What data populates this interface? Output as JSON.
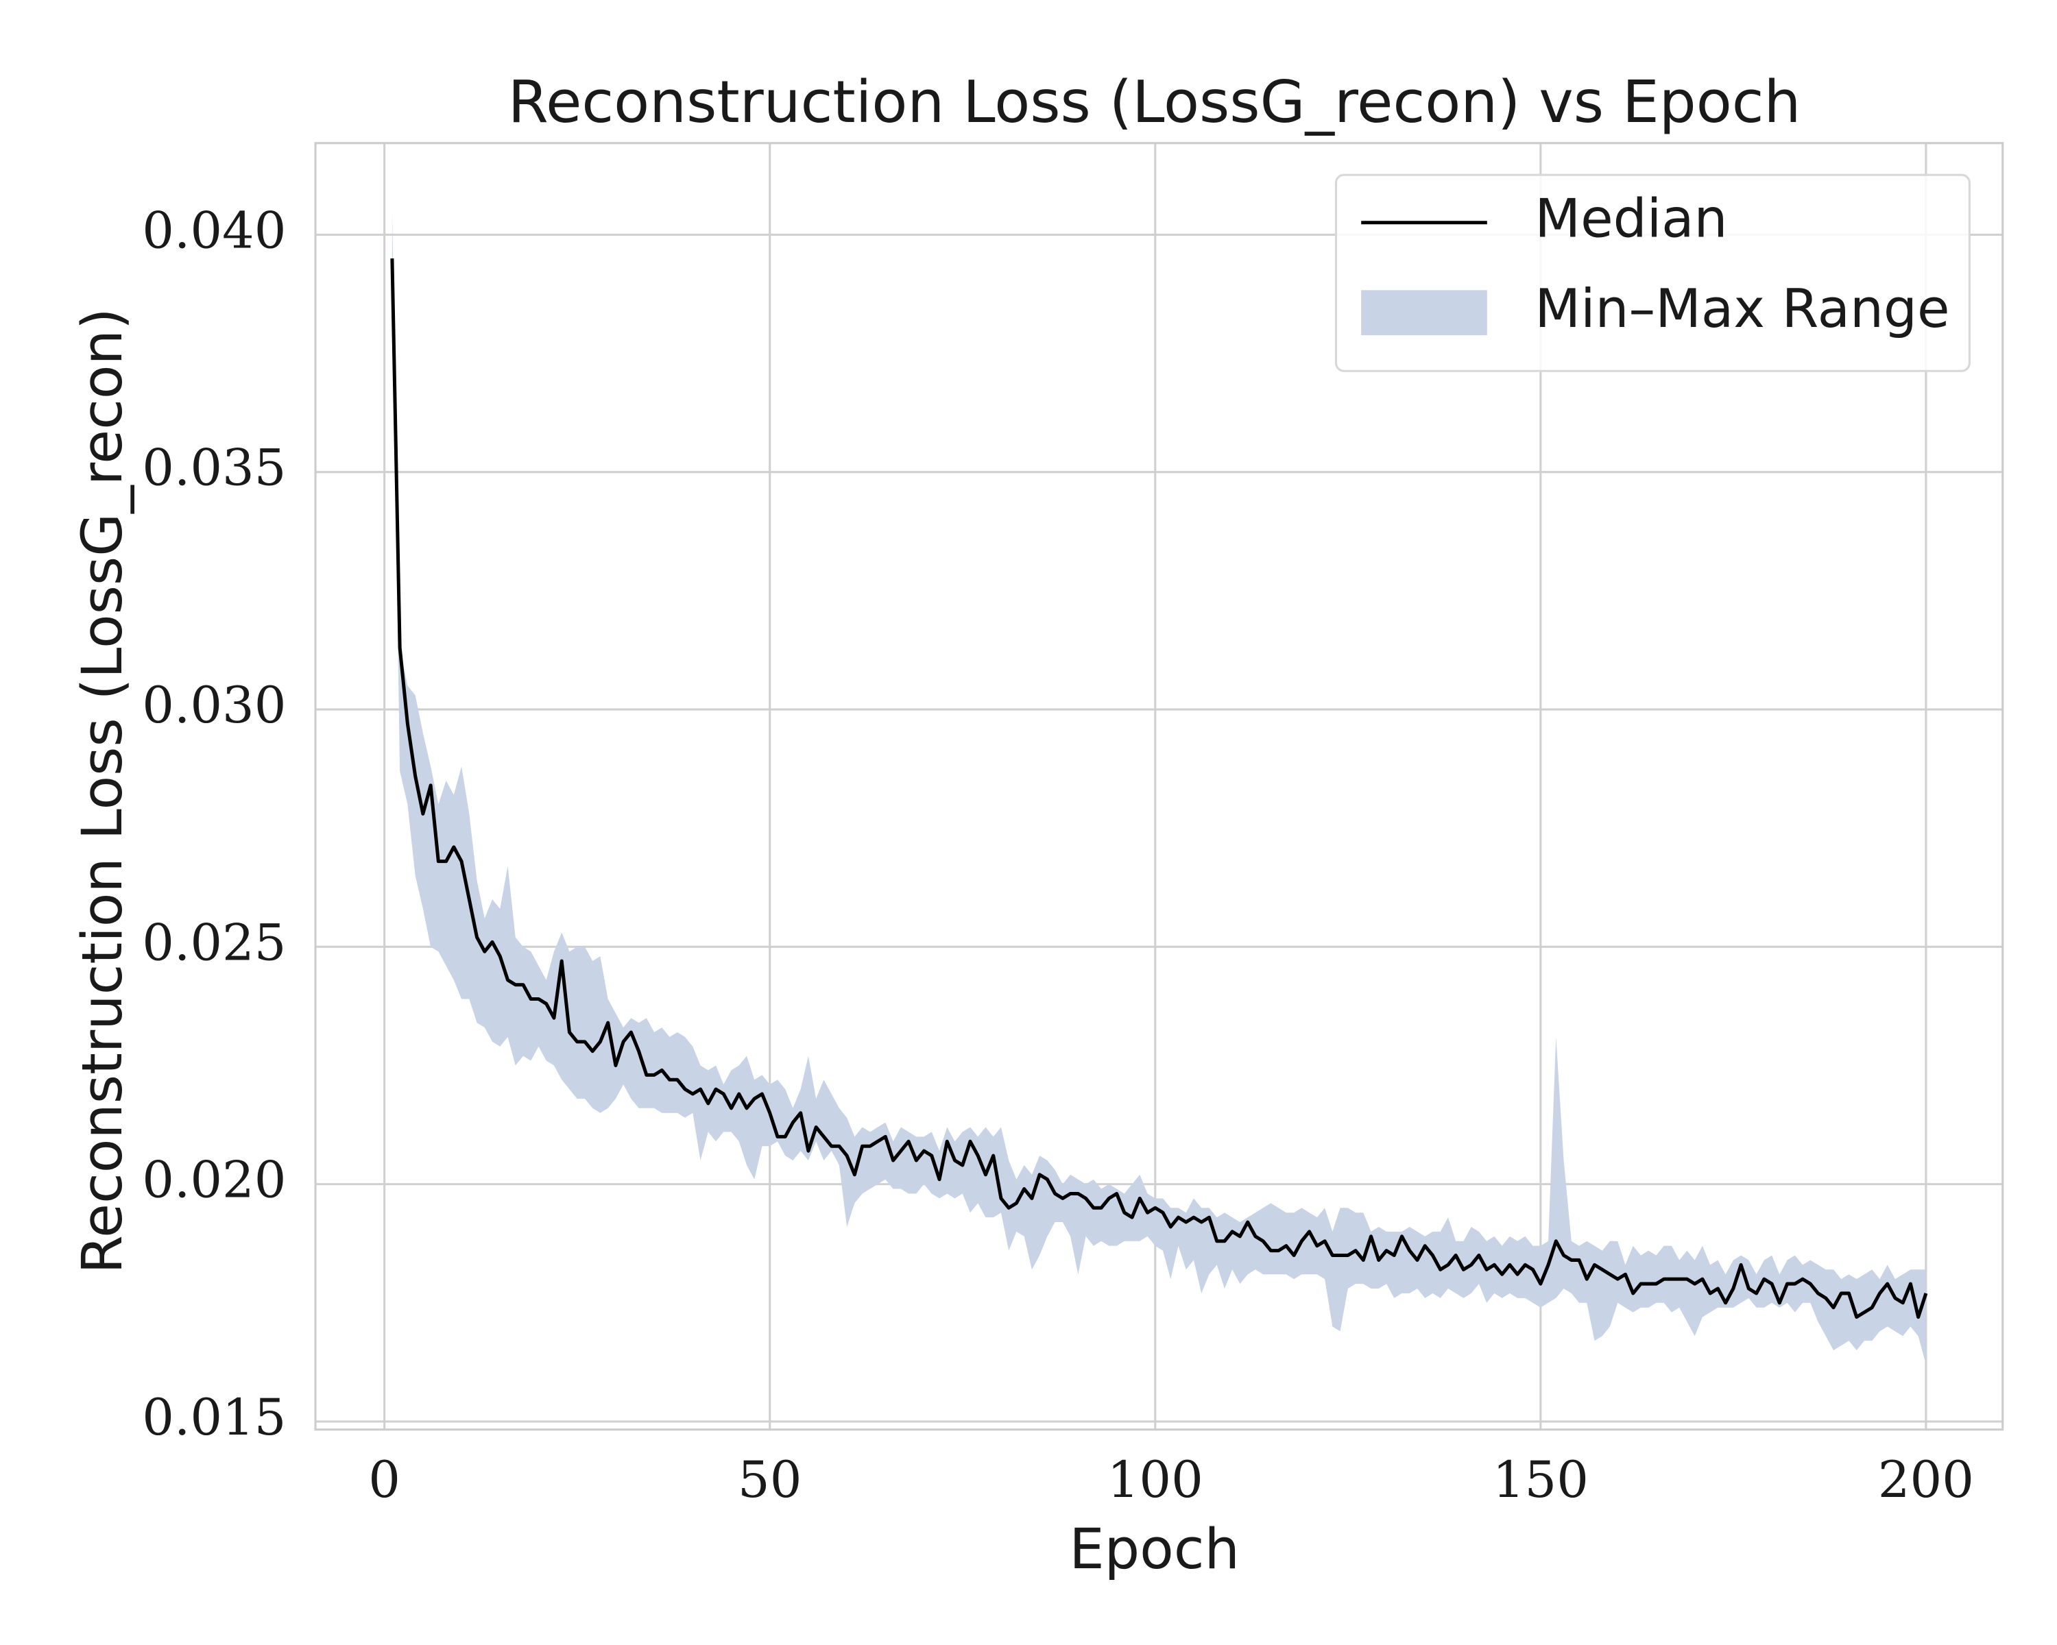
{
  "chart_data": {
    "type": "line",
    "title": "Reconstruction Loss (LossG_recon) vs Epoch",
    "x_label": "Epoch",
    "y_label": "Reconstruction Loss (LossG_recon)",
    "x": [
      1,
      2,
      3,
      4,
      5,
      6,
      7,
      8,
      9,
      10,
      11,
      12,
      13,
      14,
      15,
      16,
      17,
      18,
      19,
      20,
      21,
      22,
      23,
      24,
      25,
      26,
      27,
      28,
      29,
      30,
      31,
      32,
      33,
      34,
      35,
      36,
      37,
      38,
      39,
      40,
      41,
      42,
      43,
      44,
      45,
      46,
      47,
      48,
      49,
      50,
      51,
      52,
      53,
      54,
      55,
      56,
      57,
      58,
      59,
      60,
      61,
      62,
      63,
      64,
      65,
      66,
      67,
      68,
      69,
      70,
      71,
      72,
      73,
      74,
      75,
      76,
      77,
      78,
      79,
      80,
      81,
      82,
      83,
      84,
      85,
      86,
      87,
      88,
      89,
      90,
      91,
      92,
      93,
      94,
      95,
      96,
      97,
      98,
      99,
      100,
      101,
      102,
      103,
      104,
      105,
      106,
      107,
      108,
      109,
      110,
      111,
      112,
      113,
      114,
      115,
      116,
      117,
      118,
      119,
      120,
      121,
      122,
      123,
      124,
      125,
      126,
      127,
      128,
      129,
      130,
      131,
      132,
      133,
      134,
      135,
      136,
      137,
      138,
      139,
      140,
      141,
      142,
      143,
      144,
      145,
      146,
      147,
      148,
      149,
      150,
      151,
      152,
      153,
      154,
      155,
      156,
      157,
      158,
      159,
      160,
      161,
      162,
      163,
      164,
      165,
      166,
      167,
      168,
      169,
      170,
      171,
      172,
      173,
      174,
      175,
      176,
      177,
      178,
      179,
      180,
      181,
      182,
      183,
      184,
      185,
      186,
      187,
      188,
      189,
      190,
      191,
      192,
      193,
      194,
      195,
      196,
      197,
      198,
      199,
      200
    ],
    "series": [
      {
        "name": "Median",
        "color": "#000000",
        "values": [
          0.0395,
          0.0313,
          0.0297,
          0.0286,
          0.0278,
          0.0284,
          0.0268,
          0.0268,
          0.0271,
          0.0268,
          0.026,
          0.0252,
          0.0249,
          0.0251,
          0.0248,
          0.0243,
          0.0242,
          0.0242,
          0.0239,
          0.0239,
          0.0238,
          0.0235,
          0.0247,
          0.0232,
          0.023,
          0.023,
          0.0228,
          0.023,
          0.0234,
          0.0225,
          0.023,
          0.0232,
          0.0228,
          0.0223,
          0.0223,
          0.0224,
          0.0222,
          0.0222,
          0.022,
          0.0219,
          0.022,
          0.0217,
          0.022,
          0.0219,
          0.0216,
          0.0219,
          0.0216,
          0.0218,
          0.0219,
          0.0215,
          0.021,
          0.021,
          0.0213,
          0.0215,
          0.0207,
          0.0212,
          0.021,
          0.0208,
          0.0208,
          0.0206,
          0.0202,
          0.0208,
          0.0208,
          0.0209,
          0.021,
          0.0205,
          0.0207,
          0.0209,
          0.0205,
          0.0207,
          0.0206,
          0.0201,
          0.0209,
          0.0205,
          0.0204,
          0.0209,
          0.0206,
          0.0202,
          0.0206,
          0.0197,
          0.0195,
          0.0196,
          0.0199,
          0.0197,
          0.0202,
          0.0201,
          0.0198,
          0.0197,
          0.0198,
          0.0198,
          0.0197,
          0.0195,
          0.0195,
          0.0197,
          0.0198,
          0.0194,
          0.0193,
          0.0197,
          0.0194,
          0.0195,
          0.0194,
          0.0191,
          0.0193,
          0.0192,
          0.0193,
          0.0192,
          0.0193,
          0.0188,
          0.0188,
          0.019,
          0.0189,
          0.0192,
          0.0189,
          0.0188,
          0.0186,
          0.0186,
          0.0187,
          0.0185,
          0.0188,
          0.019,
          0.0187,
          0.0188,
          0.0185,
          0.0185,
          0.0185,
          0.0186,
          0.0184,
          0.0189,
          0.0184,
          0.0186,
          0.0185,
          0.0189,
          0.0186,
          0.0184,
          0.0187,
          0.0185,
          0.0182,
          0.0183,
          0.0185,
          0.0182,
          0.0183,
          0.0185,
          0.0182,
          0.0183,
          0.0181,
          0.0183,
          0.0181,
          0.0183,
          0.0182,
          0.0179,
          0.0183,
          0.0188,
          0.0185,
          0.0184,
          0.0184,
          0.018,
          0.0183,
          0.0182,
          0.0181,
          0.018,
          0.0181,
          0.0177,
          0.0179,
          0.0179,
          0.0179,
          0.018,
          0.018,
          0.018,
          0.018,
          0.0179,
          0.018,
          0.0177,
          0.0178,
          0.0175,
          0.0178,
          0.0183,
          0.0178,
          0.0177,
          0.018,
          0.0179,
          0.0175,
          0.0179,
          0.0179,
          0.018,
          0.0179,
          0.0177,
          0.0176,
          0.0174,
          0.0177,
          0.0177,
          0.0172,
          0.0173,
          0.0174,
          0.0177,
          0.0179,
          0.0176,
          0.0175,
          0.0179,
          0.0172,
          0.0177
        ]
      }
    ],
    "band": {
      "name": "Min–Max Range",
      "color": "#c8d3e6",
      "lower": [
        0.0393,
        0.0287,
        0.028,
        0.0265,
        0.0258,
        0.025,
        0.0249,
        0.0246,
        0.0243,
        0.0239,
        0.0239,
        0.0234,
        0.0233,
        0.023,
        0.0229,
        0.0231,
        0.0225,
        0.0227,
        0.0226,
        0.0229,
        0.0226,
        0.0225,
        0.0222,
        0.022,
        0.0218,
        0.0218,
        0.0216,
        0.0215,
        0.0216,
        0.0218,
        0.0221,
        0.0218,
        0.0216,
        0.0216,
        0.0216,
        0.0215,
        0.0215,
        0.0215,
        0.0214,
        0.0215,
        0.0205,
        0.0211,
        0.0209,
        0.0211,
        0.0211,
        0.0209,
        0.0204,
        0.0201,
        0.0208,
        0.0208,
        0.0209,
        0.0206,
        0.0205,
        0.0207,
        0.0205,
        0.0209,
        0.0205,
        0.0207,
        0.0204,
        0.0191,
        0.0196,
        0.0198,
        0.0199,
        0.02,
        0.0201,
        0.0199,
        0.0199,
        0.0198,
        0.0198,
        0.02,
        0.0198,
        0.0197,
        0.0198,
        0.0197,
        0.0198,
        0.0194,
        0.0196,
        0.0193,
        0.0193,
        0.0194,
        0.0186,
        0.019,
        0.0189,
        0.0182,
        0.0185,
        0.0189,
        0.0192,
        0.0192,
        0.0189,
        0.0181,
        0.0189,
        0.0187,
        0.0188,
        0.0187,
        0.0187,
        0.0188,
        0.0188,
        0.0188,
        0.0189,
        0.0187,
        0.0186,
        0.018,
        0.0187,
        0.0182,
        0.0184,
        0.0177,
        0.0181,
        0.0183,
        0.0178,
        0.0182,
        0.0179,
        0.0181,
        0.0182,
        0.0181,
        0.0181,
        0.0181,
        0.0181,
        0.018,
        0.0181,
        0.0181,
        0.0181,
        0.018,
        0.017,
        0.0169,
        0.0178,
        0.0179,
        0.0179,
        0.0178,
        0.0178,
        0.0179,
        0.0176,
        0.0177,
        0.0177,
        0.0178,
        0.0176,
        0.0177,
        0.0176,
        0.0178,
        0.0177,
        0.0176,
        0.0177,
        0.0179,
        0.0175,
        0.0177,
        0.0176,
        0.0177,
        0.0176,
        0.0176,
        0.0175,
        0.0174,
        0.0175,
        0.0176,
        0.0178,
        0.0177,
        0.0175,
        0.0175,
        0.0167,
        0.0168,
        0.017,
        0.0175,
        0.0174,
        0.0173,
        0.0174,
        0.0174,
        0.0175,
        0.0175,
        0.0173,
        0.0174,
        0.0171,
        0.0168,
        0.0172,
        0.0173,
        0.0174,
        0.0174,
        0.0174,
        0.0175,
        0.0176,
        0.0174,
        0.0174,
        0.0175,
        0.0174,
        0.0175,
        0.0173,
        0.0175,
        0.0175,
        0.0171,
        0.0168,
        0.0165,
        0.0166,
        0.0167,
        0.0165,
        0.0167,
        0.0167,
        0.0169,
        0.017,
        0.0169,
        0.0168,
        0.017,
        0.0168,
        0.0162
      ],
      "upper": [
        0.0405,
        0.0313,
        0.0305,
        0.0303,
        0.0295,
        0.0288,
        0.028,
        0.0285,
        0.0282,
        0.0288,
        0.0278,
        0.0264,
        0.0256,
        0.026,
        0.0258,
        0.0267,
        0.0252,
        0.025,
        0.0249,
        0.0246,
        0.0243,
        0.0249,
        0.0253,
        0.0249,
        0.025,
        0.025,
        0.0247,
        0.0248,
        0.0239,
        0.0236,
        0.0233,
        0.0235,
        0.0234,
        0.0235,
        0.0232,
        0.0233,
        0.0231,
        0.0232,
        0.0231,
        0.0229,
        0.0225,
        0.0224,
        0.0225,
        0.0221,
        0.0224,
        0.0225,
        0.0227,
        0.0222,
        0.0223,
        0.0221,
        0.0222,
        0.022,
        0.0216,
        0.022,
        0.0227,
        0.0218,
        0.0222,
        0.0219,
        0.0216,
        0.0214,
        0.021,
        0.0212,
        0.0211,
        0.0212,
        0.0213,
        0.0209,
        0.0212,
        0.0211,
        0.021,
        0.021,
        0.0211,
        0.0207,
        0.0212,
        0.0209,
        0.0211,
        0.0212,
        0.021,
        0.0212,
        0.021,
        0.0212,
        0.0205,
        0.0201,
        0.0204,
        0.0202,
        0.0206,
        0.0205,
        0.0203,
        0.02,
        0.0202,
        0.0201,
        0.02,
        0.0201,
        0.0199,
        0.02,
        0.0199,
        0.0198,
        0.02,
        0.0202,
        0.0198,
        0.0197,
        0.0197,
        0.0195,
        0.0195,
        0.0194,
        0.0197,
        0.0195,
        0.0195,
        0.0193,
        0.0194,
        0.0193,
        0.0192,
        0.0193,
        0.0194,
        0.0195,
        0.0196,
        0.0195,
        0.0194,
        0.0194,
        0.0195,
        0.0194,
        0.0193,
        0.0195,
        0.019,
        0.0195,
        0.0195,
        0.0194,
        0.0194,
        0.019,
        0.0191,
        0.019,
        0.019,
        0.019,
        0.0191,
        0.019,
        0.0189,
        0.019,
        0.019,
        0.0193,
        0.0188,
        0.0188,
        0.0191,
        0.019,
        0.0188,
        0.0189,
        0.0187,
        0.0189,
        0.0188,
        0.0189,
        0.0187,
        0.0187,
        0.0188,
        0.0231,
        0.0205,
        0.0188,
        0.0187,
        0.0188,
        0.0187,
        0.0186,
        0.0188,
        0.0188,
        0.0183,
        0.0187,
        0.0185,
        0.0186,
        0.0185,
        0.0187,
        0.0187,
        0.0184,
        0.0186,
        0.0184,
        0.0187,
        0.0183,
        0.0184,
        0.0181,
        0.0184,
        0.0185,
        0.0184,
        0.0181,
        0.0184,
        0.0185,
        0.0181,
        0.0184,
        0.0185,
        0.0183,
        0.0184,
        0.0183,
        0.0182,
        0.0182,
        0.018,
        0.0181,
        0.018,
        0.0181,
        0.0182,
        0.018,
        0.0183,
        0.018,
        0.0181,
        0.0182,
        0.0182,
        0.0182
      ]
    },
    "xlim": [
      -8.95,
      209.95
    ],
    "ylim": [
      0.01483,
      0.04193
    ],
    "xticks": [
      0,
      50,
      100,
      150,
      200
    ],
    "yticks": [
      0.015,
      {
        "value": 0.02,
        "label": "0.020"
      },
      0.025,
      {
        "value": 0.03,
        "label": "0.030"
      },
      0.035,
      {
        "value": 0.04,
        "label": "0.040"
      }
    ],
    "grid": true,
    "legend": "upper right"
  }
}
